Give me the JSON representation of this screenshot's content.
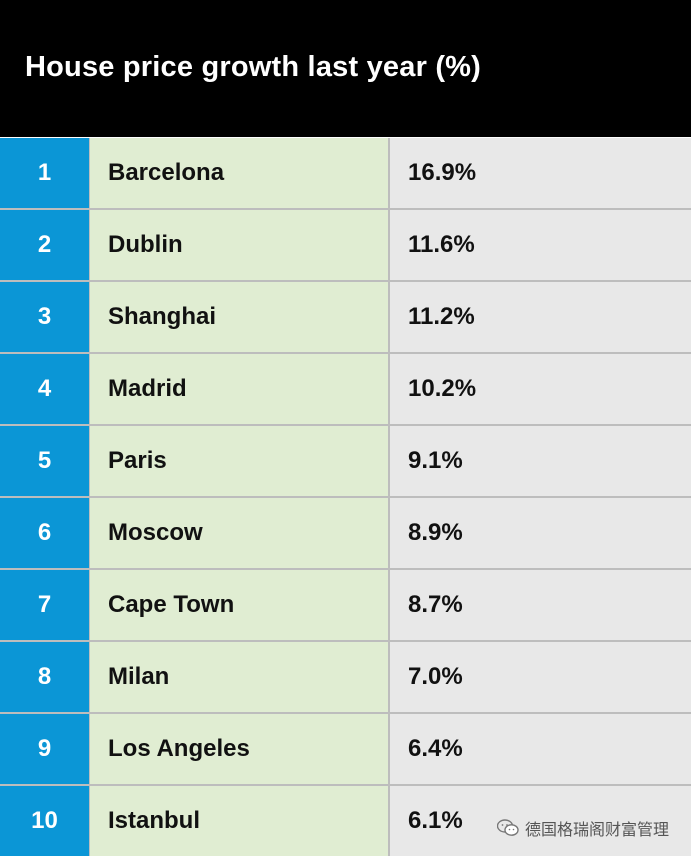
{
  "header": {
    "title": "House price growth last year (%)"
  },
  "chart_data": {
    "type": "table",
    "title": "House price growth last year (%)",
    "rows": [
      {
        "rank": "1",
        "city": "Barcelona",
        "value": "16.9%"
      },
      {
        "rank": "2",
        "city": "Dublin",
        "value": "11.6%"
      },
      {
        "rank": "3",
        "city": "Shanghai",
        "value": "11.2%"
      },
      {
        "rank": "4",
        "city": "Madrid",
        "value": "10.2%"
      },
      {
        "rank": "5",
        "city": "Paris",
        "value": "9.1%"
      },
      {
        "rank": "6",
        "city": "Moscow",
        "value": "8.9%"
      },
      {
        "rank": "7",
        "city": "Cape Town",
        "value": "8.7%"
      },
      {
        "rank": "8",
        "city": "Milan",
        "value": "7.0%"
      },
      {
        "rank": "9",
        "city": "Los Angeles",
        "value": "6.4%"
      },
      {
        "rank": "10",
        "city": "Istanbul",
        "value": "6.1%"
      }
    ]
  },
  "watermark": {
    "icon": "wechat-icon",
    "text": "德国格瑞阁财富管理"
  },
  "colors": {
    "header_bg": "#000000",
    "rank_bg": "#0b96d6",
    "city_bg": "#e0edd2",
    "value_bg": "#e8e8e8"
  }
}
